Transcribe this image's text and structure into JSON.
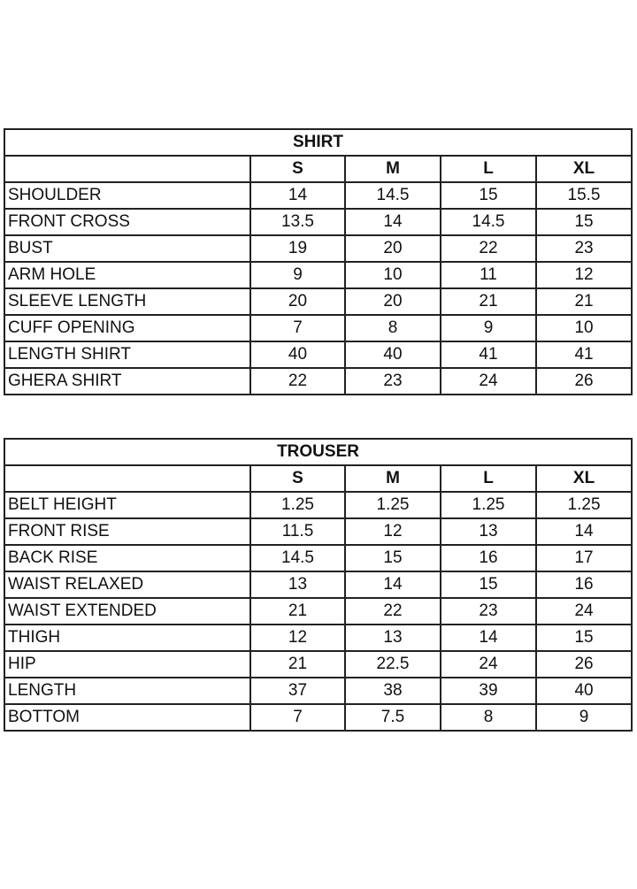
{
  "sizes": [
    "S",
    "M",
    "L",
    "XL"
  ],
  "shirt": {
    "title": "SHIRT",
    "rows": [
      {
        "label": "SHOULDER",
        "values": [
          "14",
          "14.5",
          "15",
          "15.5"
        ]
      },
      {
        "label": "FRONT CROSS",
        "values": [
          "13.5",
          "14",
          "14.5",
          "15"
        ]
      },
      {
        "label": "BUST",
        "values": [
          "19",
          "20",
          "22",
          "23"
        ]
      },
      {
        "label": "ARM HOLE",
        "values": [
          "9",
          "10",
          "11",
          "12"
        ]
      },
      {
        "label": "SLEEVE LENGTH",
        "values": [
          "20",
          "20",
          "21",
          "21"
        ]
      },
      {
        "label": "CUFF OPENING",
        "values": [
          "7",
          "8",
          "9",
          "10"
        ]
      },
      {
        "label": "LENGTH SHIRT",
        "values": [
          "40",
          "40",
          "41",
          "41"
        ]
      },
      {
        "label": "GHERA SHIRT",
        "values": [
          "22",
          "23",
          "24",
          "26"
        ]
      }
    ]
  },
  "trouser": {
    "title": "TROUSER",
    "rows": [
      {
        "label": "BELT HEIGHT",
        "values": [
          "1.25",
          "1.25",
          "1.25",
          "1.25"
        ]
      },
      {
        "label": "FRONT RISE",
        "values": [
          "11.5",
          "12",
          "13",
          "14"
        ]
      },
      {
        "label": "BACK RISE",
        "values": [
          "14.5",
          "15",
          "16",
          "17"
        ]
      },
      {
        "label": "WAIST RELAXED",
        "values": [
          "13",
          "14",
          "15",
          "16"
        ]
      },
      {
        "label": "WAIST EXTENDED",
        "values": [
          "21",
          "22",
          "23",
          "24"
        ]
      },
      {
        "label": "THIGH",
        "values": [
          "12",
          "13",
          "14",
          "15"
        ]
      },
      {
        "label": "HIP",
        "values": [
          "21",
          "22.5",
          "24",
          "26"
        ]
      },
      {
        "label": "LENGTH",
        "values": [
          "37",
          "38",
          "39",
          "40"
        ]
      },
      {
        "label": "BOTTOM",
        "values": [
          "7",
          "7.5",
          "8",
          "9"
        ]
      }
    ]
  }
}
